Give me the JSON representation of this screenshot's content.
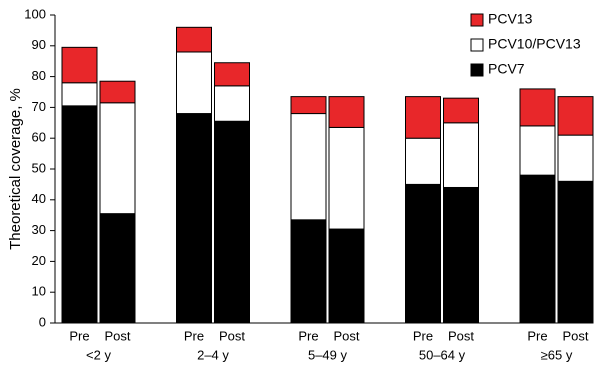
{
  "chart_data": {
    "type": "stacked-bar",
    "y_label": "Theoretical coverage, %",
    "categories": [
      "Pre",
      "Post",
      "Pre",
      "Post",
      "Pre",
      "Post",
      "Pre",
      "Post",
      "Pre",
      "Post"
    ],
    "groups": [
      "<2 y",
      "2–4 y",
      "5–49 y",
      "50–64 y",
      "≥65 y"
    ],
    "series": [
      {
        "name": "PCV7",
        "color": "#000000",
        "values": [
          70.5,
          35.5,
          68,
          65.5,
          33.5,
          30.5,
          45,
          44,
          48,
          46
        ]
      },
      {
        "name": "PCV10/PCV13",
        "color": "#ffffff",
        "values": [
          7.5,
          36,
          20,
          11.5,
          34.5,
          33,
          15,
          21,
          16,
          15
        ]
      },
      {
        "name": "PCV13",
        "color": "#e8272a",
        "values": [
          11.5,
          7,
          8,
          7.5,
          5.5,
          10,
          13.5,
          8,
          12,
          12.5
        ]
      }
    ],
    "ylim": [
      0,
      100
    ],
    "yticks": [
      0,
      10,
      20,
      30,
      40,
      50,
      60,
      70,
      80,
      90,
      100
    ],
    "grid": false,
    "legend": "top-right"
  }
}
